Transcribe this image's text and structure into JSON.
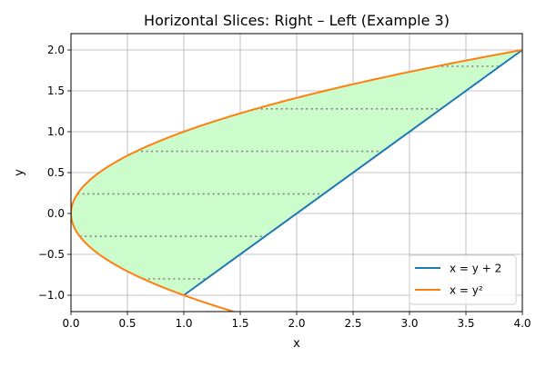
{
  "chart_data": {
    "type": "area",
    "title": "Horizontal Slices: Right – Left (Example 3)",
    "xlabel": "x",
    "ylabel": "y",
    "xlim": [
      0.0,
      4.0
    ],
    "ylim": [
      -1.2,
      2.2
    ],
    "x_ticks": [
      0.0,
      0.5,
      1.0,
      1.5,
      2.0,
      2.5,
      3.0,
      3.5,
      4.0
    ],
    "x_tick_labels": [
      "0.0",
      "0.5",
      "1.0",
      "1.5",
      "2.0",
      "2.5",
      "3.0",
      "3.5",
      "4.0"
    ],
    "y_ticks": [
      -1.0,
      -0.5,
      0.0,
      0.5,
      1.0,
      1.5,
      2.0
    ],
    "y_tick_labels": [
      "−1.0",
      "−0.5",
      "0.0",
      "0.5",
      "1.0",
      "1.5",
      "2.0"
    ],
    "grid": true,
    "legend_position": "lower-right",
    "series": [
      {
        "name": "x = y + 2",
        "function": "x = y + 2",
        "y_range": [
          -1,
          2
        ],
        "color": "#1f77b4"
      },
      {
        "name": "x = y²",
        "function": "x = y^2",
        "y_range": [
          -1.2,
          2
        ],
        "color": "#ff7f0e"
      }
    ],
    "region": {
      "description_of_bounds": "y^2 <= x <= y + 2",
      "y_range": [
        -1,
        2
      ],
      "fill_color": "#ccfccc"
    },
    "slices": [
      {
        "y": -0.8,
        "x_left": 0.64,
        "x_right": 1.2
      },
      {
        "y": -0.28,
        "x_left": 0.0784,
        "x_right": 1.72
      },
      {
        "y": 0.24,
        "x_left": 0.0576,
        "x_right": 2.24
      },
      {
        "y": 0.76,
        "x_left": 0.5776,
        "x_right": 2.76
      },
      {
        "y": 1.28,
        "x_left": 1.6384,
        "x_right": 3.28
      },
      {
        "y": 1.8,
        "x_left": 3.24,
        "x_right": 3.8
      }
    ],
    "slice_color": "#808080"
  }
}
